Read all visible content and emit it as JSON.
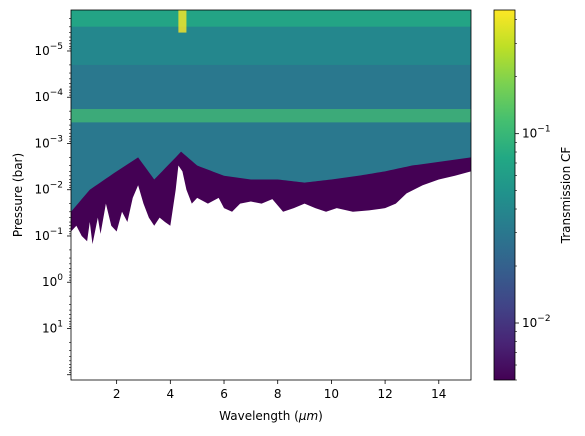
{
  "chart_data": {
    "type": "heatmap",
    "title": "",
    "xlabel_main": "Wavelength (",
    "xlabel_unit": "μm",
    "xlabel_close": ")",
    "ylabel": "Pressure (bar)",
    "colorbar_label": "Transmission CF",
    "xlim": [
      0.3,
      15.2
    ],
    "ylim_bar": [
      130,
      1.3e-06
    ],
    "y_scale": "log",
    "y_inverted": true,
    "colorbar_scale": "log",
    "colorbar_range": [
      0.005,
      0.45
    ],
    "colormap": "viridis",
    "background_color": "#ffffff",
    "x_ticks": [
      {
        "value": 2,
        "label": "2"
      },
      {
        "value": 4,
        "label": "4"
      },
      {
        "value": 6,
        "label": "6"
      },
      {
        "value": 8,
        "label": "8"
      },
      {
        "value": 10,
        "label": "10"
      },
      {
        "value": 12,
        "label": "12"
      },
      {
        "value": 14,
        "label": "14"
      }
    ],
    "y_ticks": [
      {
        "value": 1e-05,
        "base": "10",
        "exp": "−5"
      },
      {
        "value": 0.0001,
        "base": "10",
        "exp": "−4"
      },
      {
        "value": 0.001,
        "base": "10",
        "exp": "−3"
      },
      {
        "value": 0.01,
        "base": "10",
        "exp": "−2"
      },
      {
        "value": 0.1,
        "base": "10",
        "exp": "−1"
      },
      {
        "value": 1,
        "base": "10",
        "exp": "0"
      },
      {
        "value": 10,
        "base": "10",
        "exp": "1"
      }
    ],
    "colorbar_ticks": [
      {
        "value": 0.1,
        "base": "10",
        "exp": "−1"
      },
      {
        "value": 0.01,
        "base": "10",
        "exp": "−2"
      }
    ],
    "cloud_deck_bottom_bar": [
      [
        0.3,
        0.08
      ],
      [
        0.5,
        0.06
      ],
      [
        0.7,
        0.1
      ],
      [
        0.9,
        0.13
      ],
      [
        1.0,
        0.05
      ],
      [
        1.1,
        0.15
      ],
      [
        1.3,
        0.04
      ],
      [
        1.4,
        0.09
      ],
      [
        1.6,
        0.02
      ],
      [
        1.8,
        0.06
      ],
      [
        2.0,
        0.08
      ],
      [
        2.2,
        0.03
      ],
      [
        2.4,
        0.05
      ],
      [
        2.6,
        0.015
      ],
      [
        2.8,
        0.008
      ],
      [
        3.0,
        0.02
      ],
      [
        3.2,
        0.04
      ],
      [
        3.4,
        0.06
      ],
      [
        3.6,
        0.04
      ],
      [
        3.8,
        0.05
      ],
      [
        4.0,
        0.06
      ],
      [
        4.2,
        0.01
      ],
      [
        4.3,
        0.003
      ],
      [
        4.45,
        0.004
      ],
      [
        4.6,
        0.01
      ],
      [
        4.8,
        0.02
      ],
      [
        5.0,
        0.015
      ],
      [
        5.4,
        0.02
      ],
      [
        5.8,
        0.015
      ],
      [
        6.0,
        0.025
      ],
      [
        6.3,
        0.03
      ],
      [
        6.6,
        0.02
      ],
      [
        7.0,
        0.018
      ],
      [
        7.4,
        0.02
      ],
      [
        7.8,
        0.016
      ],
      [
        8.2,
        0.03
      ],
      [
        8.6,
        0.025
      ],
      [
        9.0,
        0.02
      ],
      [
        9.4,
        0.025
      ],
      [
        9.8,
        0.03
      ],
      [
        10.2,
        0.025
      ],
      [
        10.8,
        0.03
      ],
      [
        11.4,
        0.028
      ],
      [
        12.0,
        0.025
      ],
      [
        12.4,
        0.02
      ],
      [
        12.8,
        0.012
      ],
      [
        13.4,
        0.008
      ],
      [
        14.0,
        0.006
      ],
      [
        14.6,
        0.005
      ],
      [
        15.2,
        0.004
      ]
    ],
    "active_layer_bottom_bar": [
      [
        0.3,
        0.03
      ],
      [
        1.0,
        0.01
      ],
      [
        2.0,
        0.004
      ],
      [
        2.8,
        0.002
      ],
      [
        3.4,
        0.006
      ],
      [
        4.2,
        0.002
      ],
      [
        4.4,
        0.0015
      ],
      [
        5.0,
        0.003
      ],
      [
        6.0,
        0.005
      ],
      [
        7.0,
        0.006
      ],
      [
        8.0,
        0.006
      ],
      [
        9.0,
        0.007
      ],
      [
        10.0,
        0.006
      ],
      [
        11.0,
        0.005
      ],
      [
        12.0,
        0.004
      ],
      [
        13.0,
        0.003
      ],
      [
        14.0,
        0.0025
      ],
      [
        15.2,
        0.002
      ]
    ],
    "high_contribution_band_bar": [
      0.00018,
      0.00035
    ]
  }
}
